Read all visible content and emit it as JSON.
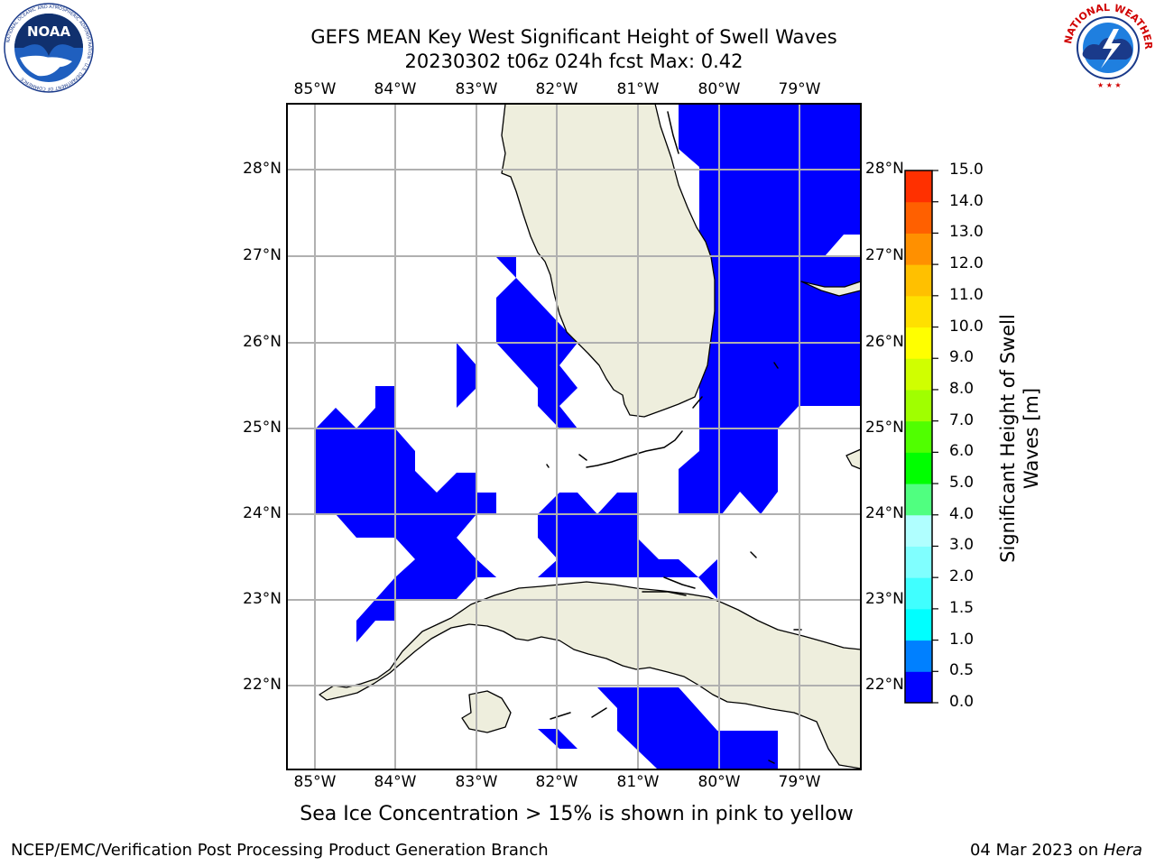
{
  "title": {
    "line1": "GEFS MEAN Key West Significant Height of Swell Waves",
    "line2": "20230302 t06z 024h fcst   Max: 0.42"
  },
  "logos": {
    "left": {
      "name": "noaa-logo",
      "text": "NOAA",
      "ring_text": "NATIONAL OCEANIC AND ATMOSPHERIC ADMINISTRATION · U.S. DEPARTMENT OF COMMERCE"
    },
    "right": {
      "name": "nws-logo",
      "ring_text": "NATIONAL WEATHER SERVICE"
    }
  },
  "map": {
    "lon_labels": [
      "85°W",
      "84°W",
      "83°W",
      "82°W",
      "81°W",
      "80°W",
      "79°W"
    ],
    "lat_labels": [
      "28°N",
      "27°N",
      "26°N",
      "25°N",
      "24°N",
      "23°N",
      "22°N"
    ],
    "land_color": "#eeeedd",
    "ocean_color": "#ffffff",
    "wave_color": "#0000ff",
    "grid_color": "#b0b0b0"
  },
  "colorbar": {
    "label_line1": "Significant Height of Swell",
    "label_line2": "Waves [m]",
    "ticks": [
      "0.0",
      "0.5",
      "1.0",
      "1.5",
      "2.0",
      "3.0",
      "4.0",
      "5.0",
      "6.0",
      "7.0",
      "8.0",
      "9.0",
      "10.0",
      "11.0",
      "12.0",
      "13.0",
      "14.0",
      "15.0"
    ],
    "colors": [
      "#0000ff",
      "#0080ff",
      "#00ffff",
      "#40ffff",
      "#80ffff",
      "#b0ffff",
      "#50ff80",
      "#00ff00",
      "#50ff00",
      "#a0ff00",
      "#d0ff00",
      "#ffff00",
      "#ffe000",
      "#ffc000",
      "#ff9000",
      "#ff6000",
      "#ff3000"
    ]
  },
  "caption": "Sea Ice Concentration > 15% is shown in pink to yellow",
  "footer": {
    "left": "NCEP/EMC/Verification Post Processing Product Generation Branch",
    "right_date": "04 Mar 2023 on ",
    "right_host": "Hera"
  }
}
